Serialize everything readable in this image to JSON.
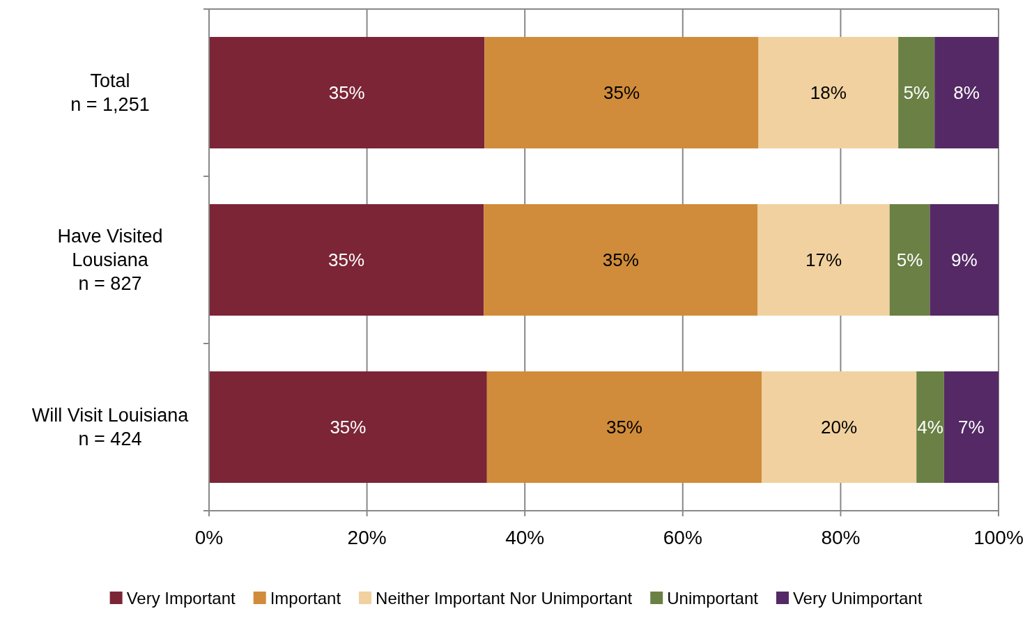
{
  "chart_data": {
    "type": "bar",
    "orientation": "horizontal",
    "stacked": true,
    "categories": [
      "Total\nn = 1,251",
      "Have Visited\nLousiana\nn = 827",
      "Will Visit Louisiana\nn = 424"
    ],
    "series": [
      {
        "name": "Very Important",
        "color": "#7b2536",
        "values": [
          34.9,
          34.8,
          35.2
        ],
        "value_labels": [
          "35%",
          "35%",
          "35%"
        ]
      },
      {
        "name": "Important",
        "color": "#d08c3a",
        "values": [
          34.7,
          34.7,
          34.8
        ],
        "value_labels": [
          "35%",
          "35%",
          "35%"
        ]
      },
      {
        "name": "Neither Important Nor Unimportant",
        "color": "#f0d19f",
        "values": [
          17.7,
          16.7,
          19.6
        ],
        "value_labels": [
          "18%",
          "17%",
          "20%"
        ]
      },
      {
        "name": "Unimportant",
        "color": "#6a8045",
        "values": [
          4.6,
          5.1,
          3.5
        ],
        "value_labels": [
          "5%",
          "5%",
          "4%"
        ]
      },
      {
        "name": "Very Unimportant",
        "color": "#542965",
        "values": [
          8.1,
          8.7,
          6.9
        ],
        "value_labels": [
          "8%",
          "9%",
          "7%"
        ]
      }
    ],
    "xlim": [
      0,
      100
    ],
    "xticks": [
      {
        "value": 0,
        "label": "0%"
      },
      {
        "value": 20,
        "label": "20%"
      },
      {
        "value": 40,
        "label": "40%"
      },
      {
        "value": 60,
        "label": "60%"
      },
      {
        "value": 80,
        "label": "80%"
      },
      {
        "value": 100,
        "label": "100%"
      }
    ],
    "grid": "x",
    "legend": "bottom"
  }
}
